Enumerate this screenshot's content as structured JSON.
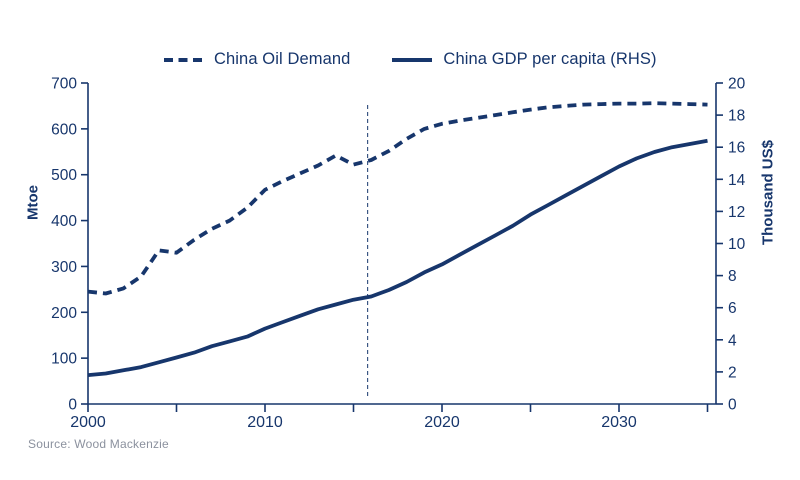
{
  "colors": {
    "navy": "#17366c",
    "source_gray": "#8b919e"
  },
  "legend": [
    {
      "label": "China Oil Demand",
      "style": "dashed"
    },
    {
      "label": "China GDP per capita (RHS)",
      "style": "solid"
    }
  ],
  "source": "Source: Wood Mackenzie",
  "chart_data": {
    "type": "line",
    "x": [
      2000,
      2001,
      2002,
      2003,
      2004,
      2005,
      2006,
      2007,
      2008,
      2009,
      2010,
      2011,
      2012,
      2013,
      2014,
      2015,
      2016,
      2017,
      2018,
      2019,
      2020,
      2021,
      2022,
      2023,
      2024,
      2025,
      2026,
      2027,
      2028,
      2029,
      2030,
      2031,
      2032,
      2033,
      2034,
      2035
    ],
    "series": [
      {
        "name": "China Oil Demand",
        "axis": "left",
        "line_style": "dashed",
        "values": [
          245,
          241,
          252,
          278,
          335,
          330,
          358,
          382,
          400,
          428,
          467,
          486,
          503,
          520,
          542,
          522,
          532,
          552,
          578,
          600,
          611,
          618,
          624,
          630,
          636,
          642,
          647,
          650,
          653,
          654,
          655,
          655,
          656,
          655,
          654,
          653
        ]
      },
      {
        "name": "China GDP per capita (RHS)",
        "axis": "right",
        "line_style": "solid",
        "values": [
          1.8,
          1.9,
          2.1,
          2.3,
          2.6,
          2.9,
          3.2,
          3.6,
          3.9,
          4.2,
          4.7,
          5.1,
          5.5,
          5.9,
          6.2,
          6.5,
          6.7,
          7.1,
          7.6,
          8.2,
          8.7,
          9.3,
          9.9,
          10.5,
          11.1,
          11.8,
          12.4,
          13.0,
          13.6,
          14.2,
          14.8,
          15.3,
          15.7,
          16.0,
          16.2,
          16.4
        ]
      }
    ],
    "left_axis": {
      "label": "Mtoe",
      "min": 0,
      "max": 700,
      "tick_step": 100,
      "ticks": [
        0,
        100,
        200,
        300,
        400,
        500,
        600,
        700
      ]
    },
    "right_axis": {
      "label": "Thousand US$",
      "min": 0,
      "max": 20,
      "tick_step": 2,
      "ticks": [
        0,
        2,
        4,
        6,
        8,
        10,
        12,
        14,
        16,
        18,
        20
      ]
    },
    "x_axis": {
      "min": 2000,
      "max": 2035,
      "minor_tick_step": 5,
      "tick_years": [
        2000,
        2005,
        2010,
        2015,
        2020,
        2025,
        2030,
        2035
      ],
      "label_ticks": [
        2000,
        2010,
        2020,
        2030
      ]
    },
    "annotations": [
      {
        "type": "vline",
        "x": 2015.8,
        "style": "dashed"
      }
    ],
    "title": "",
    "grid": false,
    "legend_position": "top"
  }
}
